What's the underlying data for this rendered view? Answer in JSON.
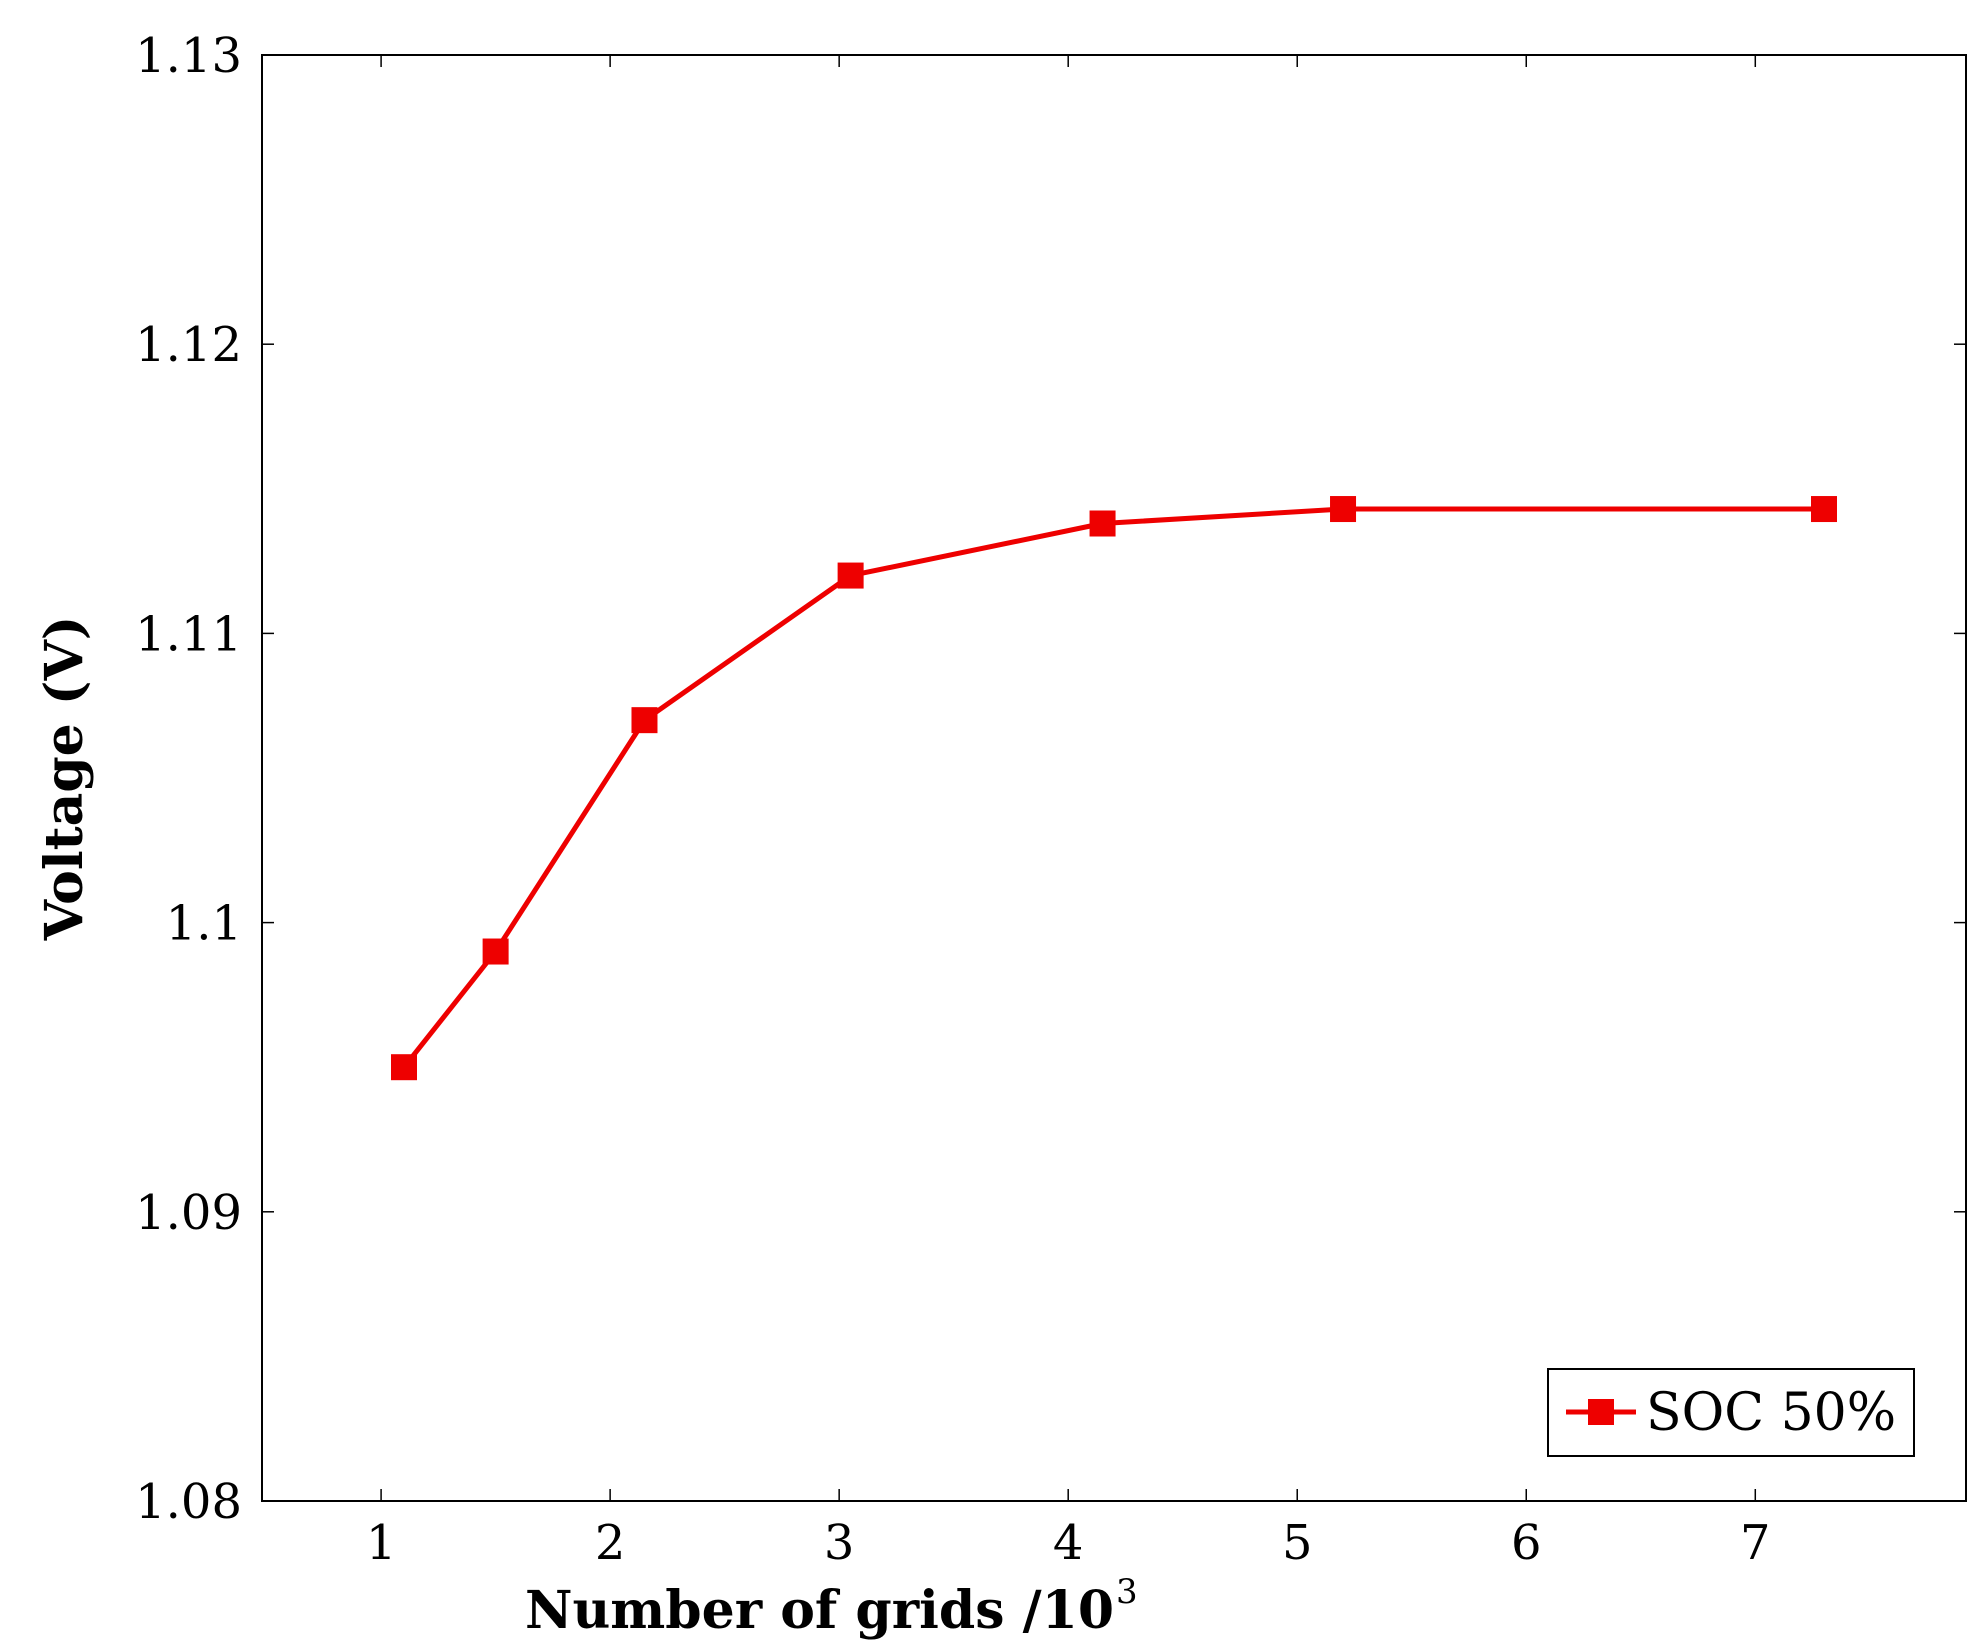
{
  "chart_data": {
    "type": "line",
    "title": "",
    "xlabel": "Number of grids /10",
    "xlabel_superscript": "3",
    "ylabel": "Voltage (V)",
    "xlim": [
      0.48,
      7.92
    ],
    "ylim": [
      1.08,
      1.13
    ],
    "xticks": [
      1,
      2,
      3,
      4,
      5,
      6,
      7
    ],
    "yticks": [
      1.08,
      1.09,
      1.1,
      1.11,
      1.12,
      1.13
    ],
    "xtick_labels": [
      "1",
      "2",
      "3",
      "4",
      "5",
      "6",
      "7"
    ],
    "ytick_labels": [
      "1.08",
      "1.09",
      "1.1",
      "1.11",
      "1.12",
      "1.13"
    ],
    "grid": false,
    "legend_position": "bottom-right",
    "series": [
      {
        "name": "SOC 50%",
        "color": "#ee0000",
        "marker": "square",
        "x": [
          1.1,
          1.5,
          2.15,
          3.05,
          4.15,
          5.2,
          7.3
        ],
        "y": [
          1.095,
          1.099,
          1.107,
          1.112,
          1.1138,
          1.1143,
          1.1143
        ]
      }
    ]
  }
}
